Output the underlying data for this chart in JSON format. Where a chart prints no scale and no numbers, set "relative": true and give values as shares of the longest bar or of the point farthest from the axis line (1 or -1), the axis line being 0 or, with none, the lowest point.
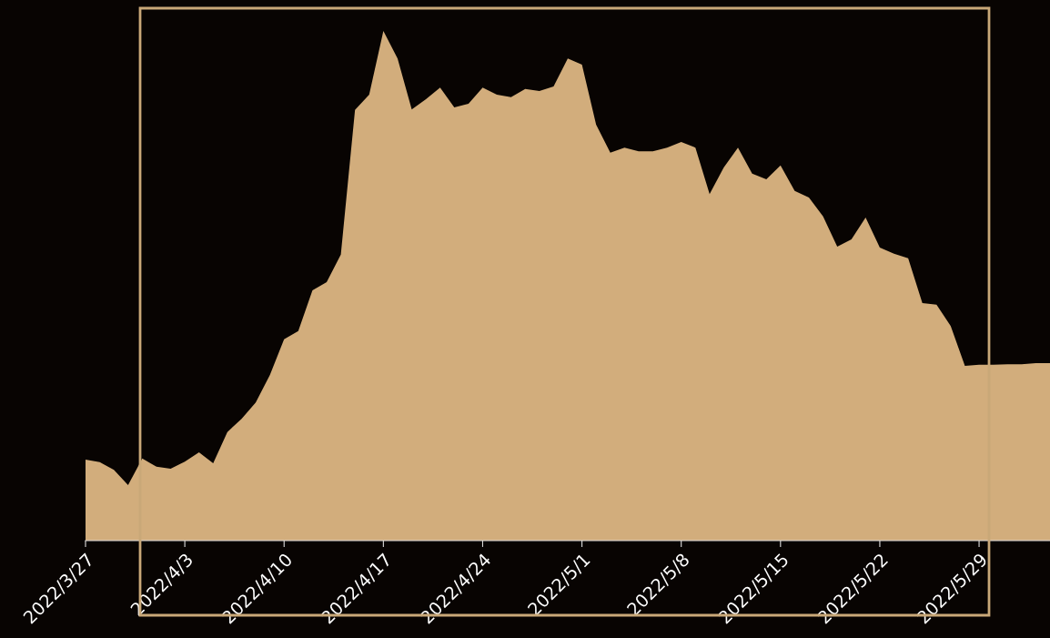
{
  "chart_data": {
    "type": "area",
    "relative": true,
    "color": "#d2ad7c",
    "x": [
      "2022-03-27",
      "2022-03-28",
      "2022-03-29",
      "2022-03-30",
      "2022-03-31",
      "2022-04-01",
      "2022-04-02",
      "2022-04-03",
      "2022-04-04",
      "2022-04-05",
      "2022-04-06",
      "2022-04-07",
      "2022-04-08",
      "2022-04-09",
      "2022-04-10",
      "2022-04-11",
      "2022-04-12",
      "2022-04-13",
      "2022-04-14",
      "2022-04-15",
      "2022-04-16",
      "2022-04-17",
      "2022-04-18",
      "2022-04-19",
      "2022-04-20",
      "2022-04-21",
      "2022-04-22",
      "2022-04-23",
      "2022-04-24",
      "2022-04-25",
      "2022-04-26",
      "2022-04-27",
      "2022-04-28",
      "2022-04-29",
      "2022-04-30",
      "2022-05-01",
      "2022-05-02",
      "2022-05-03",
      "2022-05-04",
      "2022-05-05",
      "2022-05-06",
      "2022-05-07",
      "2022-05-08",
      "2022-05-09",
      "2022-05-10",
      "2022-05-11",
      "2022-05-12",
      "2022-05-13",
      "2022-05-14",
      "2022-05-15",
      "2022-05-16",
      "2022-05-17",
      "2022-05-18",
      "2022-05-19",
      "2022-05-20",
      "2022-05-21",
      "2022-05-22",
      "2022-05-23",
      "2022-05-24",
      "2022-05-25",
      "2022-05-26",
      "2022-05-27",
      "2022-05-28",
      "2022-05-29",
      "2022-05-30",
      "2022-05-31",
      "2022-06-01",
      "2022-06-02",
      "2022-06-03"
    ],
    "values": [
      0.159,
      0.154,
      0.139,
      0.109,
      0.161,
      0.145,
      0.141,
      0.155,
      0.173,
      0.152,
      0.213,
      0.239,
      0.271,
      0.325,
      0.395,
      0.411,
      0.491,
      0.507,
      0.561,
      0.845,
      0.875,
      1,
      0.946,
      0.846,
      0.866,
      0.889,
      0.85,
      0.857,
      0.889,
      0.875,
      0.87,
      0.886,
      0.882,
      0.891,
      0.946,
      0.934,
      0.816,
      0.761,
      0.771,
      0.764,
      0.764,
      0.771,
      0.782,
      0.771,
      0.68,
      0.732,
      0.771,
      0.72,
      0.709,
      0.736,
      0.686,
      0.673,
      0.636,
      0.577,
      0.591,
      0.634,
      0.575,
      0.563,
      0.554,
      0.466,
      0.463,
      0.421,
      0.343,
      0.345,
      0.345,
      0.346,
      0.346,
      0.348,
      0.348
    ],
    "xlim": [
      "2022-03-27",
      "2022-06-03"
    ],
    "xticks": [
      {
        "value": "2022-03-27",
        "label": "2022/3/27"
      },
      {
        "value": "2022-04-03",
        "label": "2022/4/3"
      },
      {
        "value": "2022-04-10",
        "label": "2022/4/10"
      },
      {
        "value": "2022-04-17",
        "label": "2022/4/17"
      },
      {
        "value": "2022-04-24",
        "label": "2022/4/24"
      },
      {
        "value": "2022-05-01",
        "label": "2022/5/1"
      },
      {
        "value": "2022-05-08",
        "label": "2022/5/8"
      },
      {
        "value": "2022-05-15",
        "label": "2022/5/15"
      },
      {
        "value": "2022-05-22",
        "label": "2022/5/22"
      },
      {
        "value": "2022-05-29",
        "label": "2022/5/29"
      }
    ],
    "tick_labels": "x",
    "grid": false,
    "legend": false
  }
}
